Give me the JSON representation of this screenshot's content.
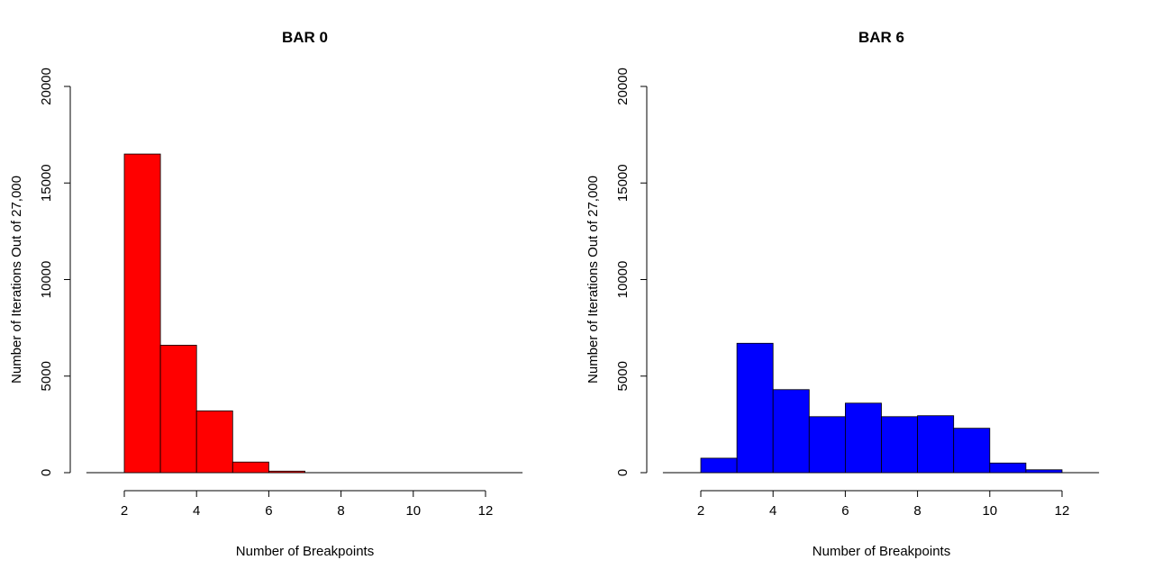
{
  "chart_data": [
    {
      "type": "bar",
      "title": "BAR 0",
      "xlabel": "Number of Breakpoints",
      "ylabel": "Number of Iterations Out of 27,000",
      "color": "#ff0000",
      "bin_edges": [
        2,
        3,
        4,
        5,
        6,
        7
      ],
      "values": [
        16500,
        6600,
        3200,
        550,
        80
      ],
      "xlim": [
        1,
        13
      ],
      "ylim": [
        0,
        20000
      ],
      "xticks": [
        2,
        4,
        6,
        8,
        10,
        12
      ],
      "yticks": [
        0,
        5000,
        10000,
        15000,
        20000
      ],
      "grid": false
    },
    {
      "type": "bar",
      "title": "BAR 6",
      "xlabel": "Number of Breakpoints",
      "ylabel": "Number of Iterations Out of 27,000",
      "color": "#0000ff",
      "bin_edges": [
        2,
        3,
        4,
        5,
        6,
        7,
        8,
        9,
        10,
        11,
        12
      ],
      "values": [
        750,
        6700,
        4300,
        2900,
        3600,
        2900,
        2950,
        2300,
        500,
        150
      ],
      "xlim": [
        1,
        13
      ],
      "ylim": [
        0,
        20000
      ],
      "xticks": [
        2,
        4,
        6,
        8,
        10,
        12
      ],
      "yticks": [
        0,
        5000,
        10000,
        15000,
        20000
      ],
      "grid": false
    }
  ]
}
